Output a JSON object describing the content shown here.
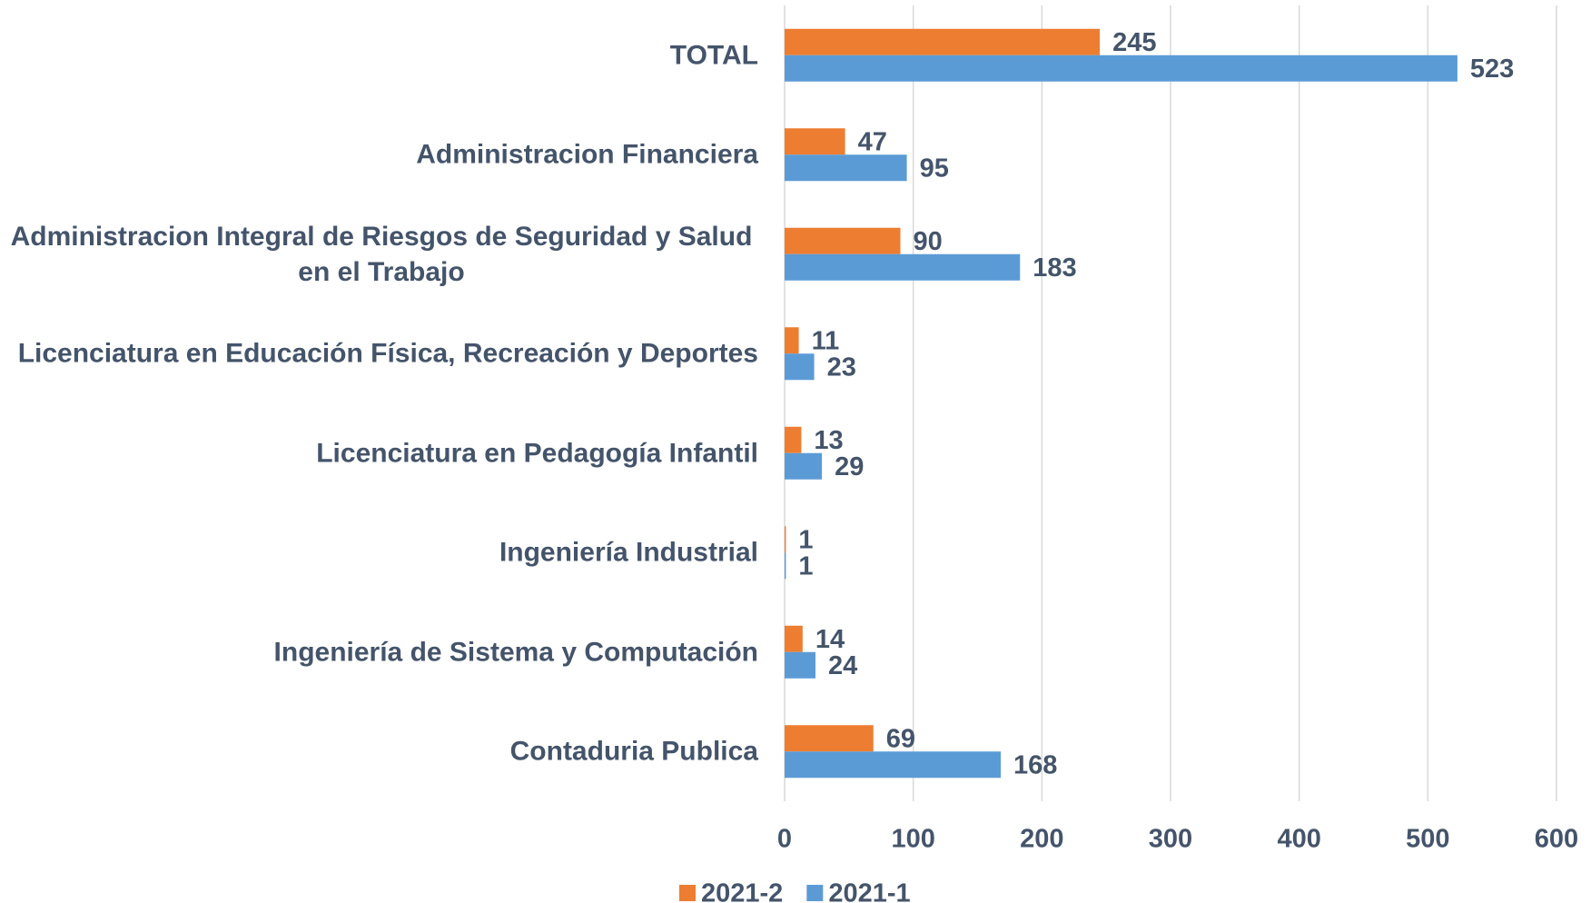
{
  "chart_data": {
    "type": "barh",
    "categories": [
      "TOTAL",
      "Administracion Financiera",
      "Administracion Integral de Riesgos de Seguridad y Salud en el Trabajo",
      "Licenciatura en Educación Física, Recreación y Deportes",
      "Licenciatura en Pedagogía Infantil",
      "Ingeniería Industrial",
      "Ingeniería de Sistema  y Computación",
      "Contaduria Publica"
    ],
    "series": [
      {
        "name": "2021-2",
        "color": "#ED7D31",
        "values": [
          245,
          47,
          90,
          11,
          13,
          1,
          14,
          69
        ]
      },
      {
        "name": "2021-1",
        "color": "#5B9BD5",
        "values": [
          523,
          95,
          183,
          23,
          29,
          1,
          24,
          168
        ]
      }
    ],
    "xlim": [
      0,
      600
    ],
    "xticks": [
      0,
      100,
      200,
      300,
      400,
      500,
      600
    ],
    "grid": true,
    "legend": "bottom"
  }
}
